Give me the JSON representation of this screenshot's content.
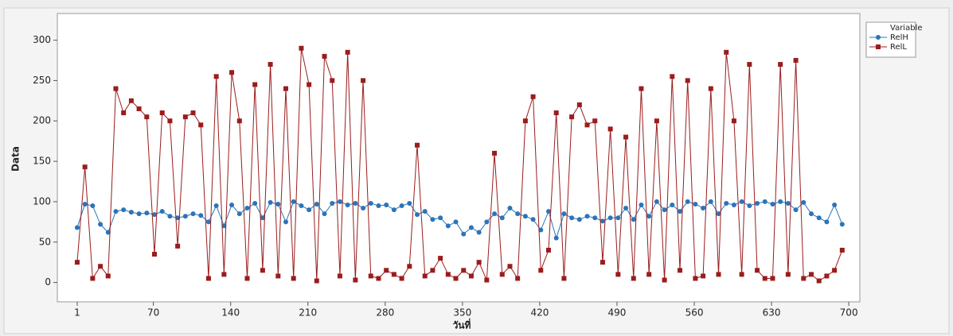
{
  "chart_data": {
    "type": "line",
    "x_label": "วันที่",
    "y_label": "Data",
    "legend_title": "Variable",
    "x": [
      1,
      8,
      15,
      22,
      29,
      36,
      43,
      50,
      57,
      64,
      71,
      78,
      85,
      92,
      99,
      106,
      113,
      120,
      127,
      134,
      141,
      148,
      155,
      162,
      169,
      176,
      183,
      190,
      197,
      204,
      211,
      218,
      225,
      232,
      239,
      246,
      253,
      260,
      267,
      274,
      281,
      288,
      295,
      302,
      309,
      316,
      323,
      330,
      337,
      344,
      351,
      358,
      365,
      372,
      379,
      386,
      393,
      400,
      407,
      414,
      421,
      428,
      435,
      442,
      449,
      456,
      463,
      470,
      477,
      484,
      491,
      498,
      505,
      512,
      519,
      526,
      533,
      540,
      547,
      554,
      561,
      568,
      575,
      582,
      589,
      596,
      603,
      610,
      617,
      624,
      631,
      638,
      645,
      652,
      659,
      666,
      673,
      680,
      687,
      694
    ],
    "series": [
      {
        "name": "RelH",
        "color": "#2b74b8",
        "marker": "circle",
        "values": [
          68,
          97,
          95,
          72,
          62,
          88,
          90,
          87,
          85,
          86,
          84,
          88,
          82,
          80,
          82,
          85,
          83,
          75,
          95,
          70,
          96,
          85,
          92,
          98,
          80,
          99,
          97,
          75,
          100,
          95,
          90,
          97,
          85,
          98,
          100,
          96,
          98,
          92,
          98,
          95,
          96,
          90,
          95,
          98,
          84,
          88,
          78,
          80,
          70,
          75,
          60,
          68,
          62,
          75,
          85,
          80,
          92,
          85,
          82,
          78,
          65,
          88,
          55,
          85,
          80,
          78,
          82,
          80,
          76,
          80,
          80,
          92,
          78,
          96,
          82,
          100,
          90,
          96,
          88,
          100,
          97,
          92,
          100,
          85,
          98,
          96,
          100,
          95,
          98,
          100,
          97,
          100,
          98,
          90,
          99,
          85,
          80,
          75,
          96,
          72
        ]
      },
      {
        "name": "RelL",
        "color": "#9b1c1c",
        "marker": "square",
        "values": [
          25,
          143,
          5,
          20,
          8,
          240,
          210,
          225,
          215,
          205,
          35,
          210,
          200,
          45,
          205,
          210,
          195,
          5,
          255,
          10,
          260,
          200,
          5,
          245,
          15,
          270,
          8,
          240,
          5,
          290,
          245,
          2,
          280,
          250,
          8,
          285,
          3,
          250,
          8,
          5,
          15,
          10,
          5,
          20,
          170,
          8,
          15,
          30,
          10,
          5,
          15,
          8,
          25,
          3,
          160,
          10,
          20,
          5,
          200,
          230,
          15,
          40,
          210,
          5,
          205,
          220,
          195,
          200,
          25,
          190,
          10,
          180,
          5,
          240,
          10,
          200,
          3,
          255,
          15,
          250,
          5,
          8,
          240,
          10,
          285,
          200,
          10,
          270,
          15,
          5,
          5,
          270,
          10,
          275,
          5,
          10,
          2,
          8,
          15,
          40
        ]
      }
    ],
    "xlim": [
      -17,
      710
    ],
    "ylim": [
      -24,
      333
    ],
    "xticks": [
      1,
      70,
      140,
      210,
      280,
      350,
      420,
      490,
      560,
      630,
      700
    ],
    "yticks": [
      0,
      50,
      100,
      150,
      200,
      250,
      300
    ],
    "legend": "top-right"
  }
}
